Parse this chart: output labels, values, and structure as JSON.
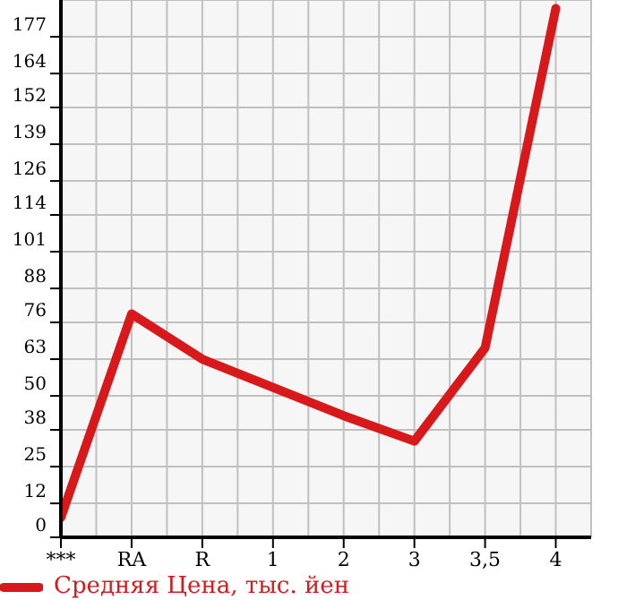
{
  "chart_data": {
    "type": "line",
    "categories": [
      "***",
      "RA",
      "R",
      "1",
      "2",
      "3",
      "3,5",
      "4"
    ],
    "series": [
      {
        "name": "Средняя Цена, тыс. йен",
        "color": "#d7191c",
        "values": [
          7,
          79,
          63,
          53,
          43,
          34,
          67,
          187
        ]
      }
    ],
    "ylim": [
      0,
      190
    ],
    "yticks": [
      0,
      12,
      25,
      38,
      50,
      63,
      76,
      88,
      101,
      114,
      126,
      139,
      152,
      164,
      177
    ],
    "grid": true,
    "legend": "bottom left",
    "marker": "none",
    "line_style": "solid"
  }
}
